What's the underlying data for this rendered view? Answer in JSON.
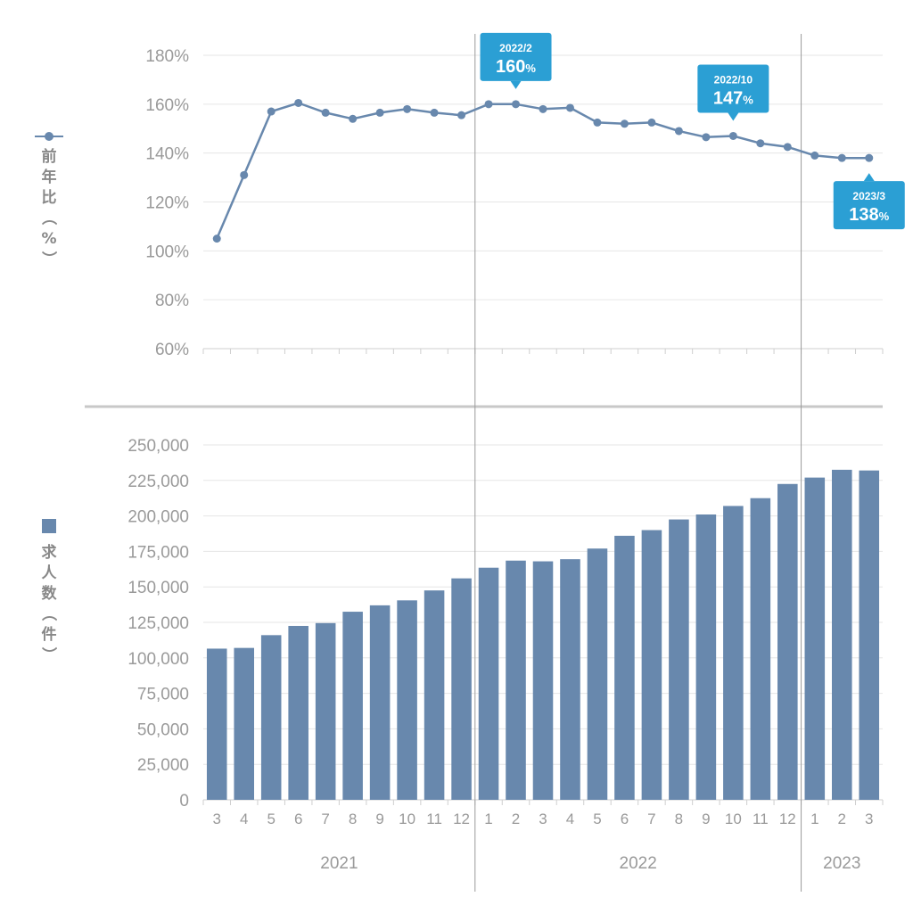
{
  "chart_data": [
    {
      "type": "line",
      "ylabel": "前年比（%）",
      "ylim": [
        60,
        180
      ],
      "yticks": [
        "60%",
        "80%",
        "100%",
        "120%",
        "140%",
        "160%",
        "180%"
      ],
      "grid": true,
      "x": [
        "2021/3",
        "2021/4",
        "2021/5",
        "2021/6",
        "2021/7",
        "2021/8",
        "2021/9",
        "2021/10",
        "2021/11",
        "2021/12",
        "2022/1",
        "2022/2",
        "2022/3",
        "2022/4",
        "2022/5",
        "2022/6",
        "2022/7",
        "2022/8",
        "2022/9",
        "2022/10",
        "2022/11",
        "2022/12",
        "2023/1",
        "2023/2",
        "2023/3"
      ],
      "values": [
        105,
        131,
        157,
        160.5,
        156.5,
        154,
        156.5,
        158,
        156.5,
        155.5,
        160,
        160,
        158,
        158.5,
        152.5,
        152,
        152.5,
        149,
        146.5,
        147,
        144,
        142.5,
        139,
        138,
        138
      ],
      "color": "#6888ad",
      "callouts": [
        {
          "date": "2022/2",
          "value": "160",
          "unit": "%",
          "index": 11
        },
        {
          "date": "2022/10",
          "value": "147",
          "unit": "%",
          "index": 19
        },
        {
          "date": "2023/3",
          "value": "138",
          "unit": "%",
          "index": 24
        }
      ],
      "callout_color": "#2b9fd4"
    },
    {
      "type": "bar",
      "ylabel": "求人数（件）",
      "ylim": [
        0,
        250000
      ],
      "yticks": [
        "0",
        "25,000",
        "50,000",
        "75,000",
        "100,000",
        "125,000",
        "150,000",
        "175,000",
        "200,000",
        "225,000",
        "250,000"
      ],
      "grid": true,
      "categories": [
        "3",
        "4",
        "5",
        "6",
        "7",
        "8",
        "9",
        "10",
        "11",
        "12",
        "1",
        "2",
        "3",
        "4",
        "5",
        "6",
        "7",
        "8",
        "9",
        "10",
        "11",
        "12",
        "1",
        "2",
        "3"
      ],
      "years": [
        {
          "label": "2021",
          "start": 0,
          "end": 9
        },
        {
          "label": "2022",
          "start": 10,
          "end": 21
        },
        {
          "label": "2023",
          "start": 22,
          "end": 24
        }
      ],
      "values": [
        106500,
        107000,
        116000,
        122500,
        124500,
        132500,
        137000,
        140500,
        147500,
        156000,
        163500,
        168500,
        168000,
        169500,
        177000,
        186000,
        190000,
        197500,
        201000,
        207000,
        212500,
        222500,
        227000,
        232500,
        232000
      ],
      "color": "#6888ad"
    }
  ]
}
